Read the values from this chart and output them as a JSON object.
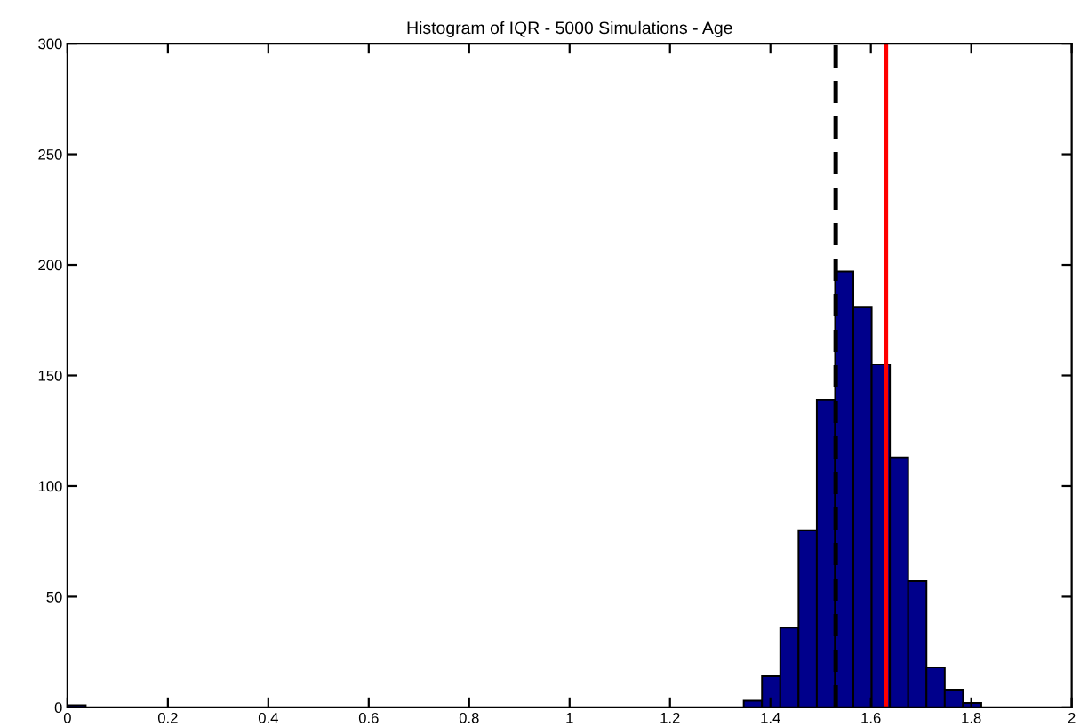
{
  "chart_data": {
    "type": "histogram",
    "title": "Histogram of IQR - 5000 Simulations - Age",
    "bins": [
      0,
      0.0364,
      0.0728,
      0.1092,
      0.1456,
      0.182,
      0.2184,
      0.2548,
      0.2912,
      0.3276,
      0.364,
      0.4004,
      0.4368,
      0.4732,
      0.5096,
      0.546,
      0.5824,
      0.6188,
      0.6552,
      0.6916,
      0.728,
      0.7644,
      0.8008,
      0.8372,
      0.8736,
      0.91,
      0.9464,
      0.9828,
      1.0192,
      1.0556,
      1.092,
      1.1284,
      1.1648,
      1.2012,
      1.2376,
      1.274,
      1.3104,
      1.3468,
      1.3832,
      1.4196,
      1.456,
      1.4924,
      1.5288,
      1.5652,
      1.6016,
      1.638,
      1.6744,
      1.7108,
      1.7472,
      1.7836,
      1.82
    ],
    "values": [
      1,
      0,
      0,
      0,
      0,
      0,
      0,
      0,
      0,
      0,
      0,
      0,
      0,
      0,
      0,
      0,
      0,
      0,
      0,
      0,
      0,
      0,
      0,
      0,
      0,
      0,
      0,
      0,
      0,
      0,
      0,
      0,
      0,
      0,
      0,
      0,
      0,
      3,
      14,
      36,
      80,
      139,
      197,
      181,
      155,
      113,
      57,
      18,
      8,
      2
    ],
    "color": "#00008b",
    "xlim": [
      0,
      2
    ],
    "xticks": [
      0,
      0.2,
      0.4,
      0.6,
      0.8,
      1,
      1.2,
      1.4,
      1.6,
      1.8,
      2
    ],
    "ylim": [
      0,
      300
    ],
    "yticks": [
      0,
      50,
      100,
      150,
      200,
      250,
      300
    ],
    "grid": false,
    "ref_lines": [
      {
        "axis": "x",
        "value": 1.53,
        "color": "#000000",
        "line_style": "dashed"
      },
      {
        "axis": "x",
        "value": 1.63,
        "color": "#ff0000",
        "line_style": "solid"
      }
    ]
  }
}
